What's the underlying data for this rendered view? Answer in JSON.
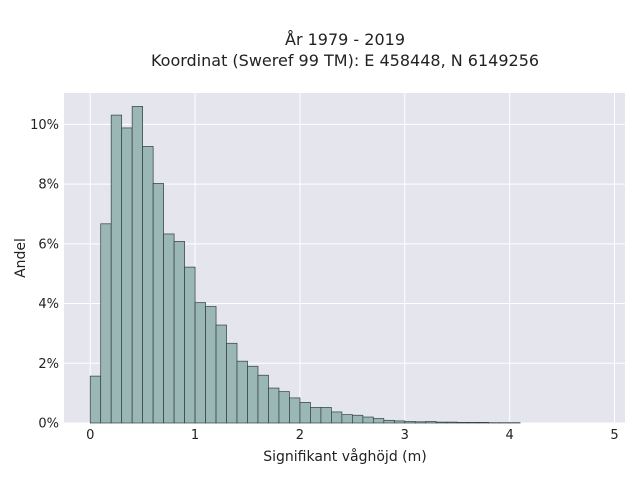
{
  "chart_data": {
    "type": "bar",
    "title": "År 1979 - 2019",
    "subtitle": "Koordinat (Sweref 99 TM): E 458448, N 6149256",
    "xlabel": "Signifikant våghöjd (m)",
    "ylabel": "Andel",
    "xlim": [
      -0.25,
      5.1
    ],
    "ylim": [
      0,
      11.05
    ],
    "xticks": [
      0,
      1,
      2,
      3,
      4,
      5
    ],
    "xtick_labels": [
      "0",
      "1",
      "2",
      "3",
      "4",
      "5"
    ],
    "yticks": [
      0,
      2,
      4,
      6,
      8,
      10
    ],
    "ytick_labels": [
      "0%",
      "2%",
      "4%",
      "6%",
      "8%",
      "10%"
    ],
    "grid": true,
    "bin_width": 0.1,
    "bin_starts": [
      0.0,
      0.1,
      0.2,
      0.3,
      0.4,
      0.5,
      0.6,
      0.7,
      0.8,
      0.9,
      1.0,
      1.1,
      1.2,
      1.3,
      1.4,
      1.5,
      1.6,
      1.7,
      1.8,
      1.9,
      2.0,
      2.1,
      2.2,
      2.3,
      2.4,
      2.5,
      2.6,
      2.7,
      2.8,
      2.9,
      3.0,
      3.1,
      3.2,
      3.3,
      3.4,
      3.5,
      3.6,
      3.7,
      3.8,
      3.9,
      4.0
    ],
    "values": [
      1.57,
      6.67,
      10.31,
      9.88,
      10.6,
      9.26,
      8.02,
      6.33,
      6.08,
      5.22,
      4.03,
      3.9,
      3.28,
      2.67,
      2.07,
      1.9,
      1.6,
      1.17,
      1.05,
      0.84,
      0.69,
      0.52,
      0.52,
      0.37,
      0.28,
      0.26,
      0.2,
      0.15,
      0.09,
      0.07,
      0.05,
      0.04,
      0.05,
      0.03,
      0.03,
      0.02,
      0.02,
      0.02,
      0.01,
      0.01,
      0.01
    ],
    "bar_color": "#9bb7b5",
    "bar_edge_color": "#2f3f3e",
    "plot_bg": "#e5e5ee",
    "grid_color": "#ffffff"
  }
}
